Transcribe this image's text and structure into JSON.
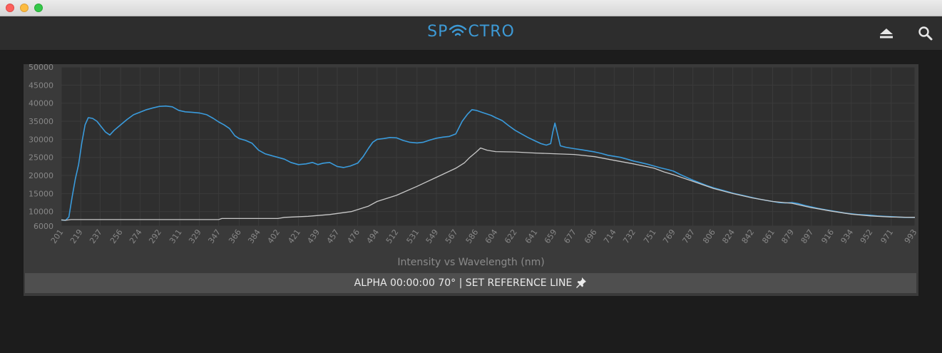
{
  "window": {
    "buttons": [
      "close",
      "minimize",
      "maximize"
    ]
  },
  "app": {
    "logo_text_left": "SP",
    "logo_text_right": "CTRO",
    "logo_color": "#3d9ad6",
    "icons": {
      "eject": "eject-icon",
      "search": "search-icon"
    }
  },
  "status_bar": {
    "label": "ALPHA 00:00:00 70° | SET REFERENCE LINE",
    "icon": "pin-icon"
  },
  "chart_data": {
    "type": "line",
    "title": "Intensity vs Wavelength (nm)",
    "xlabel": "",
    "ylabel": "",
    "y_ticks": [
      6000,
      10000,
      15000,
      20000,
      25000,
      30000,
      35000,
      40000,
      45000,
      50000
    ],
    "ylim": [
      6000,
      50000
    ],
    "x_ticks": [
      201,
      219,
      237,
      256,
      274,
      292,
      311,
      329,
      347,
      366,
      384,
      402,
      421,
      439,
      457,
      476,
      494,
      512,
      531,
      549,
      567,
      586,
      604,
      622,
      641,
      659,
      677,
      696,
      714,
      732,
      751,
      769,
      787,
      806,
      824,
      842,
      861,
      879,
      897,
      916,
      934,
      952,
      971,
      993
    ],
    "xlim": [
      201,
      993
    ],
    "grid": true,
    "series": [
      {
        "color": "#3a9bdc",
        "points": [
          [
            201,
            7700
          ],
          [
            205,
            7600
          ],
          [
            208,
            8500
          ],
          [
            211,
            14000
          ],
          [
            214,
            19000
          ],
          [
            217,
            23000
          ],
          [
            220,
            29000
          ],
          [
            223,
            34000
          ],
          [
            226,
            36000
          ],
          [
            230,
            35800
          ],
          [
            234,
            35000
          ],
          [
            238,
            33500
          ],
          [
            242,
            32000
          ],
          [
            246,
            31200
          ],
          [
            250,
            32500
          ],
          [
            256,
            34000
          ],
          [
            262,
            35500
          ],
          [
            268,
            36800
          ],
          [
            274,
            37500
          ],
          [
            280,
            38200
          ],
          [
            286,
            38700
          ],
          [
            292,
            39100
          ],
          [
            298,
            39200
          ],
          [
            304,
            39000
          ],
          [
            310,
            38000
          ],
          [
            316,
            37600
          ],
          [
            322,
            37500
          ],
          [
            329,
            37300
          ],
          [
            336,
            36800
          ],
          [
            342,
            35800
          ],
          [
            347,
            34800
          ],
          [
            352,
            34000
          ],
          [
            357,
            33000
          ],
          [
            362,
            31000
          ],
          [
            366,
            30200
          ],
          [
            372,
            29700
          ],
          [
            378,
            28900
          ],
          [
            384,
            27000
          ],
          [
            390,
            26000
          ],
          [
            396,
            25500
          ],
          [
            402,
            25000
          ],
          [
            408,
            24500
          ],
          [
            414,
            23600
          ],
          [
            421,
            23000
          ],
          [
            428,
            23200
          ],
          [
            434,
            23600
          ],
          [
            439,
            23000
          ],
          [
            444,
            23400
          ],
          [
            450,
            23600
          ],
          [
            457,
            22500
          ],
          [
            463,
            22200
          ],
          [
            469,
            22600
          ],
          [
            476,
            23400
          ],
          [
            481,
            25200
          ],
          [
            486,
            27500
          ],
          [
            490,
            29200
          ],
          [
            494,
            30000
          ],
          [
            500,
            30200
          ],
          [
            506,
            30500
          ],
          [
            512,
            30400
          ],
          [
            518,
            29700
          ],
          [
            524,
            29200
          ],
          [
            531,
            29000
          ],
          [
            537,
            29200
          ],
          [
            543,
            29800
          ],
          [
            549,
            30300
          ],
          [
            555,
            30600
          ],
          [
            561,
            30800
          ],
          [
            567,
            31500
          ],
          [
            573,
            35000
          ],
          [
            578,
            37000
          ],
          [
            582,
            38200
          ],
          [
            586,
            38000
          ],
          [
            591,
            37500
          ],
          [
            596,
            37000
          ],
          [
            600,
            36600
          ],
          [
            604,
            36000
          ],
          [
            610,
            35200
          ],
          [
            616,
            33800
          ],
          [
            622,
            32500
          ],
          [
            628,
            31500
          ],
          [
            634,
            30500
          ],
          [
            641,
            29500
          ],
          [
            646,
            28800
          ],
          [
            651,
            28400
          ],
          [
            655,
            28800
          ],
          [
            657,
            32000
          ],
          [
            659,
            34500
          ],
          [
            661,
            32000
          ],
          [
            664,
            28200
          ],
          [
            669,
            27800
          ],
          [
            677,
            27400
          ],
          [
            684,
            27100
          ],
          [
            690,
            26800
          ],
          [
            696,
            26500
          ],
          [
            702,
            26100
          ],
          [
            708,
            25600
          ],
          [
            714,
            25300
          ],
          [
            720,
            25000
          ],
          [
            726,
            24500
          ],
          [
            732,
            24000
          ],
          [
            738,
            23600
          ],
          [
            745,
            23100
          ],
          [
            751,
            22600
          ],
          [
            757,
            22100
          ],
          [
            764,
            21600
          ],
          [
            769,
            21200
          ],
          [
            775,
            20300
          ],
          [
            781,
            19500
          ],
          [
            787,
            18700
          ],
          [
            794,
            17900
          ],
          [
            800,
            17200
          ],
          [
            806,
            16600
          ],
          [
            812,
            16100
          ],
          [
            818,
            15600
          ],
          [
            824,
            15100
          ],
          [
            830,
            14700
          ],
          [
            836,
            14300
          ],
          [
            842,
            13900
          ],
          [
            848,
            13500
          ],
          [
            855,
            13100
          ],
          [
            861,
            12800
          ],
          [
            867,
            12500
          ],
          [
            873,
            12400
          ],
          [
            879,
            12500
          ],
          [
            885,
            12200
          ],
          [
            891,
            11700
          ],
          [
            897,
            11300
          ],
          [
            903,
            10900
          ],
          [
            910,
            10500
          ],
          [
            916,
            10200
          ],
          [
            922,
            9900
          ],
          [
            928,
            9600
          ],
          [
            934,
            9400
          ],
          [
            940,
            9200
          ],
          [
            946,
            9100
          ],
          [
            952,
            9000
          ],
          [
            958,
            8800
          ],
          [
            964,
            8700
          ],
          [
            971,
            8600
          ],
          [
            977,
            8500
          ],
          [
            983,
            8400
          ],
          [
            993,
            8400
          ]
        ]
      },
      {
        "color": "#c8c8c8",
        "points": [
          [
            201,
            7700
          ],
          [
            205,
            7600
          ],
          [
            210,
            7800
          ],
          [
            347,
            7800
          ],
          [
            350,
            8100
          ],
          [
            402,
            8100
          ],
          [
            408,
            8400
          ],
          [
            430,
            8700
          ],
          [
            450,
            9200
          ],
          [
            470,
            10000
          ],
          [
            486,
            11500
          ],
          [
            494,
            12800
          ],
          [
            512,
            14500
          ],
          [
            531,
            17000
          ],
          [
            549,
            19500
          ],
          [
            567,
            22000
          ],
          [
            575,
            23500
          ],
          [
            580,
            25000
          ],
          [
            586,
            26500
          ],
          [
            590,
            27600
          ],
          [
            596,
            27000
          ],
          [
            604,
            26600
          ],
          [
            622,
            26500
          ],
          [
            641,
            26200
          ],
          [
            659,
            26000
          ],
          [
            677,
            25800
          ],
          [
            696,
            25200
          ],
          [
            714,
            24200
          ],
          [
            732,
            23200
          ],
          [
            751,
            22000
          ],
          [
            760,
            21000
          ],
          [
            769,
            20200
          ],
          [
            787,
            18400
          ],
          [
            806,
            16400
          ],
          [
            824,
            15000
          ],
          [
            842,
            13800
          ],
          [
            861,
            12800
          ],
          [
            879,
            12300
          ],
          [
            897,
            11100
          ],
          [
            916,
            10100
          ],
          [
            934,
            9300
          ],
          [
            952,
            8800
          ],
          [
            971,
            8500
          ],
          [
            993,
            8400
          ]
        ]
      }
    ]
  }
}
